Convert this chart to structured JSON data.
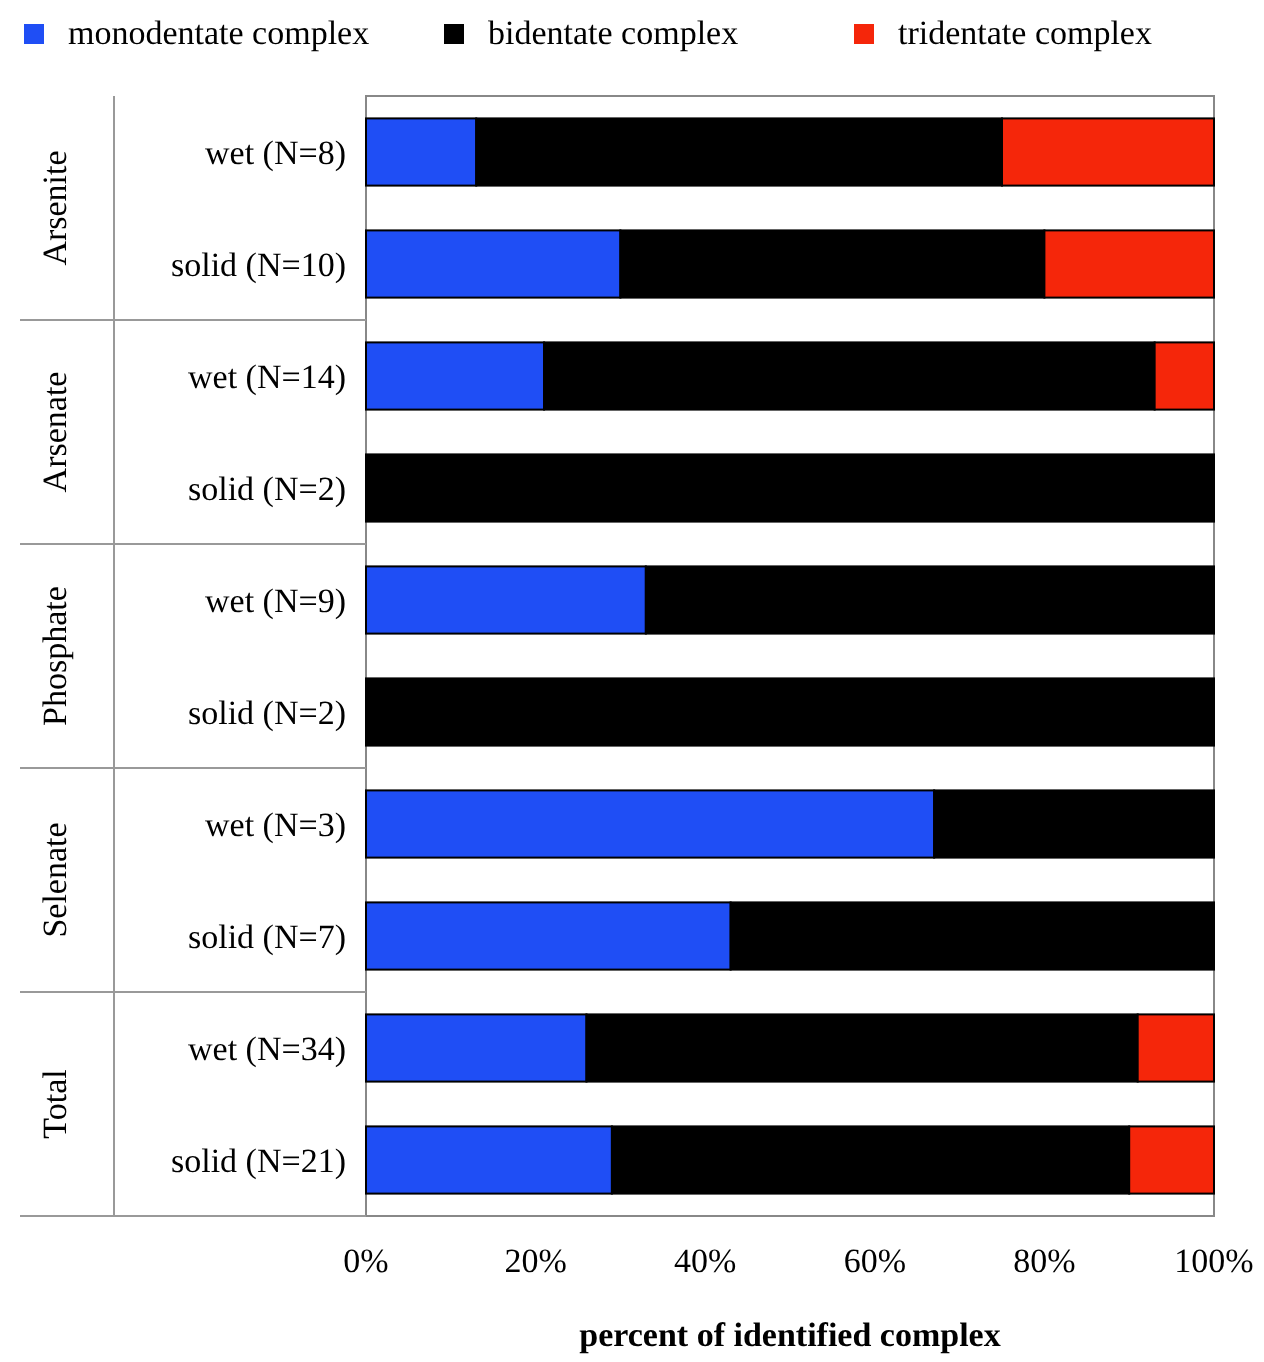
{
  "chart_data": {
    "type": "bar",
    "orientation": "horizontal",
    "stacked": true,
    "categories": [
      "wet (N=8)",
      "solid (N=10)",
      "wet (N=14)",
      "solid (N=2)",
      "wet (N=9)",
      "solid (N=2)",
      "wet (N=3)",
      "solid (N=7)",
      "wet (N=34)",
      "solid (N=21)"
    ],
    "series": [
      {
        "name": "monodentate complex",
        "color": "#1f4ef5",
        "values": [
          13,
          30,
          21,
          0,
          33,
          0,
          67,
          43,
          26,
          29
        ]
      },
      {
        "name": "bidentate complex",
        "color": "#000000",
        "values": [
          62,
          50,
          72,
          100,
          67,
          100,
          33,
          57,
          65,
          61
        ]
      },
      {
        "name": "tridentate complex",
        "color": "#f5260a",
        "values": [
          25,
          20,
          7,
          0,
          0,
          0,
          0,
          0,
          9,
          10
        ]
      }
    ],
    "xlim": [
      0,
      100
    ],
    "xticks": [
      {
        "value": 0,
        "label": "0%"
      },
      {
        "value": 20,
        "label": "20%"
      },
      {
        "value": 40,
        "label": "40%"
      },
      {
        "value": 60,
        "label": "60%"
      },
      {
        "value": 80,
        "label": "80%"
      },
      {
        "value": 100,
        "label": "100%"
      }
    ],
    "xlabel": "percent of identified complex",
    "annotations": [
      "Arsenite",
      "Arsenate",
      "Phosphate",
      "Selenate",
      "Total"
    ],
    "legend": "top"
  }
}
